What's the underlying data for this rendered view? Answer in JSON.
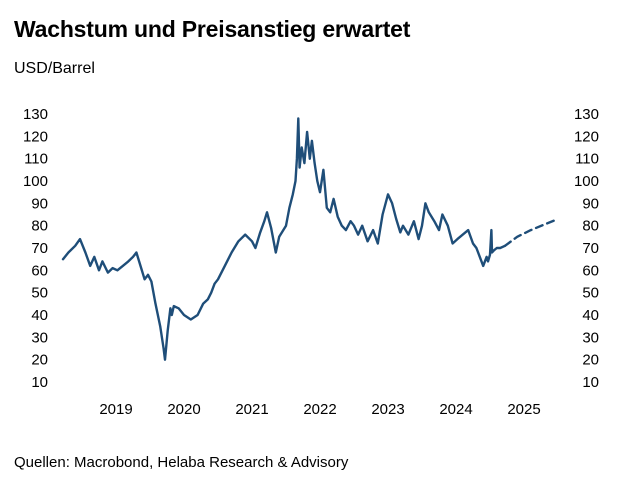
{
  "title": "Wachstum und Preisanstieg erwartet",
  "subtitle": "USD/Barrel",
  "source": "Quellen: Macrobond, Helaba Research & Advisory",
  "colors": {
    "line": "#1f4e79"
  },
  "chart_data": {
    "type": "line",
    "title": "Wachstum und Preisanstieg erwartet",
    "ylabel": "USD/Barrel",
    "xlabel": "",
    "ylim": [
      10,
      130
    ],
    "yticks": [
      10,
      20,
      30,
      40,
      50,
      60,
      70,
      80,
      90,
      100,
      110,
      120,
      130
    ],
    "xticks": [
      "2019",
      "2020",
      "2021",
      "2022",
      "2023",
      "2024",
      "2025"
    ],
    "xlim": [
      2018.72,
      2026.0
    ],
    "grid": false,
    "y_axis_both_sides": true,
    "series": [
      {
        "style": "solid",
        "x": [
          2018.72,
          2018.8,
          2018.9,
          2018.97,
          2019.05,
          2019.12,
          2019.18,
          2019.25,
          2019.3,
          2019.38,
          2019.45,
          2019.52,
          2019.6,
          2019.68,
          2019.75,
          2019.8,
          2019.86,
          2019.92,
          2019.97,
          2020.02,
          2020.08,
          2020.15,
          2020.2,
          2020.22,
          2020.26,
          2020.3,
          2020.32,
          2020.35,
          2020.42,
          2020.5,
          2020.6,
          2020.7,
          2020.78,
          2020.85,
          2020.9,
          2020.95,
          2021.0,
          2021.1,
          2021.2,
          2021.3,
          2021.4,
          2021.5,
          2021.55,
          2021.62,
          2021.68,
          2021.72,
          2021.78,
          2021.85,
          2021.9,
          2022.0,
          2022.05,
          2022.1,
          2022.14,
          2022.16,
          2022.18,
          2022.2,
          2022.23,
          2022.27,
          2022.31,
          2022.35,
          2022.38,
          2022.42,
          2022.46,
          2022.5,
          2022.55,
          2022.6,
          2022.65,
          2022.7,
          2022.76,
          2022.82,
          2022.88,
          2022.95,
          2023.0,
          2023.06,
          2023.12,
          2023.2,
          2023.28,
          2023.35,
          2023.42,
          2023.5,
          2023.56,
          2023.62,
          2023.68,
          2023.72,
          2023.8,
          2023.88,
          2023.95,
          2024.0,
          2024.05,
          2024.1,
          2024.18,
          2024.25,
          2024.3,
          2024.38,
          2024.45,
          2024.52,
          2024.6,
          2024.68,
          2024.75,
          2024.8,
          2024.85,
          2024.9,
          2024.95,
          2024.97,
          2025.0,
          2025.02,
          2025.03,
          2025.06,
          2025.1,
          2025.15,
          2025.22
        ],
        "y": [
          65,
          68,
          71,
          74,
          68,
          62,
          66,
          60,
          64,
          59,
          61,
          60,
          62,
          64,
          66,
          68,
          62,
          56,
          58,
          55,
          45,
          35,
          25,
          20,
          33,
          43,
          40,
          44,
          43,
          40,
          38,
          40,
          45,
          47,
          50,
          54,
          56,
          62,
          68,
          73,
          76,
          73,
          70,
          77,
          82,
          86,
          79,
          68,
          75,
          80,
          88,
          94,
          100,
          110,
          128,
          106,
          115,
          108,
          122,
          110,
          118,
          108,
          100,
          95,
          105,
          88,
          86,
          92,
          84,
          80,
          78,
          82,
          80,
          76,
          80,
          73,
          78,
          72,
          85,
          94,
          90,
          83,
          77,
          80,
          76,
          82,
          74,
          80,
          90,
          86,
          82,
          78,
          85,
          80,
          72,
          74,
          76,
          78,
          72,
          70,
          66,
          62,
          66,
          64,
          67,
          78,
          68,
          69,
          70,
          70,
          71
        ]
      },
      {
        "style": "dashed",
        "x": [
          2025.22,
          2025.4,
          2025.6,
          2025.8,
          2026.0
        ],
        "y": [
          71,
          75,
          78,
          80.5,
          83
        ]
      }
    ]
  }
}
